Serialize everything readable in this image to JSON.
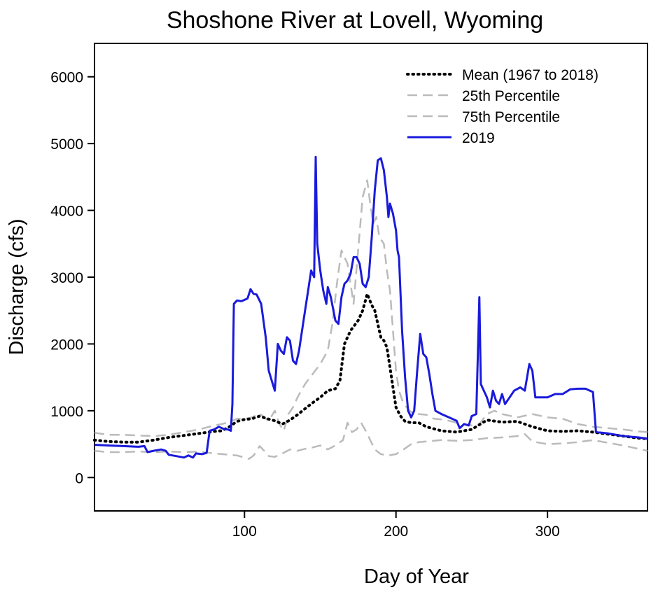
{
  "chart_data": {
    "type": "line",
    "title": "Shoshone River at Lovell, Wyoming",
    "xlabel": "Day of Year",
    "ylabel": "Discharge (cfs)",
    "xlim": [
      1,
      366
    ],
    "ylim": [
      -500,
      6500
    ],
    "xticks": [
      100,
      200,
      300
    ],
    "yticks": [
      0,
      1000,
      2000,
      3000,
      4000,
      5000,
      6000
    ],
    "grid": false,
    "legend_position": "top-right",
    "series": [
      {
        "name": "Mean (1967 to 2018)",
        "color": "#000000",
        "style": "dotted",
        "points": [
          [
            1,
            560
          ],
          [
            10,
            540
          ],
          [
            20,
            530
          ],
          [
            30,
            530
          ],
          [
            40,
            560
          ],
          [
            50,
            600
          ],
          [
            60,
            630
          ],
          [
            70,
            660
          ],
          [
            80,
            690
          ],
          [
            85,
            700
          ],
          [
            90,
            760
          ],
          [
            95,
            840
          ],
          [
            100,
            870
          ],
          [
            105,
            880
          ],
          [
            110,
            920
          ],
          [
            115,
            880
          ],
          [
            120,
            850
          ],
          [
            125,
            800
          ],
          [
            130,
            860
          ],
          [
            135,
            940
          ],
          [
            140,
            1030
          ],
          [
            145,
            1120
          ],
          [
            150,
            1200
          ],
          [
            155,
            1300
          ],
          [
            160,
            1330
          ],
          [
            163,
            1450
          ],
          [
            166,
            2000
          ],
          [
            170,
            2200
          ],
          [
            175,
            2350
          ],
          [
            178,
            2500
          ],
          [
            181,
            2750
          ],
          [
            184,
            2580
          ],
          [
            186,
            2500
          ],
          [
            188,
            2300
          ],
          [
            190,
            2100
          ],
          [
            192,
            2050
          ],
          [
            194,
            1950
          ],
          [
            196,
            1650
          ],
          [
            198,
            1350
          ],
          [
            200,
            1050
          ],
          [
            203,
            920
          ],
          [
            206,
            840
          ],
          [
            210,
            820
          ],
          [
            215,
            820
          ],
          [
            220,
            760
          ],
          [
            230,
            700
          ],
          [
            240,
            680
          ],
          [
            250,
            720
          ],
          [
            260,
            860
          ],
          [
            270,
            830
          ],
          [
            280,
            840
          ],
          [
            290,
            760
          ],
          [
            300,
            700
          ],
          [
            310,
            690
          ],
          [
            320,
            700
          ],
          [
            330,
            680
          ],
          [
            340,
            650
          ],
          [
            350,
            620
          ],
          [
            360,
            590
          ],
          [
            366,
            580
          ]
        ]
      },
      {
        "name": "25th Percentile",
        "color": "#bbbbbb",
        "style": "dashed",
        "points": [
          [
            1,
            400
          ],
          [
            10,
            380
          ],
          [
            20,
            380
          ],
          [
            30,
            390
          ],
          [
            40,
            380
          ],
          [
            50,
            390
          ],
          [
            60,
            380
          ],
          [
            70,
            390
          ],
          [
            80,
            360
          ],
          [
            90,
            340
          ],
          [
            95,
            330
          ],
          [
            100,
            300
          ],
          [
            103,
            280
          ],
          [
            106,
            330
          ],
          [
            110,
            470
          ],
          [
            113,
            400
          ],
          [
            116,
            320
          ],
          [
            120,
            310
          ],
          [
            125,
            360
          ],
          [
            130,
            420
          ],
          [
            135,
            400
          ],
          [
            140,
            430
          ],
          [
            145,
            450
          ],
          [
            150,
            480
          ],
          [
            155,
            420
          ],
          [
            160,
            480
          ],
          [
            165,
            560
          ],
          [
            168,
            820
          ],
          [
            171,
            680
          ],
          [
            174,
            720
          ],
          [
            177,
            820
          ],
          [
            180,
            700
          ],
          [
            183,
            560
          ],
          [
            186,
            420
          ],
          [
            190,
            350
          ],
          [
            195,
            330
          ],
          [
            200,
            350
          ],
          [
            205,
            420
          ],
          [
            210,
            500
          ],
          [
            215,
            530
          ],
          [
            220,
            540
          ],
          [
            230,
            560
          ],
          [
            240,
            550
          ],
          [
            250,
            560
          ],
          [
            260,
            590
          ],
          [
            270,
            600
          ],
          [
            280,
            620
          ],
          [
            285,
            650
          ],
          [
            290,
            540
          ],
          [
            300,
            500
          ],
          [
            310,
            510
          ],
          [
            320,
            530
          ],
          [
            330,
            560
          ],
          [
            340,
            520
          ],
          [
            350,
            480
          ],
          [
            360,
            430
          ],
          [
            366,
            400
          ]
        ]
      },
      {
        "name": "75th Percentile",
        "color": "#bbbbbb",
        "style": "dashed",
        "points": [
          [
            1,
            670
          ],
          [
            10,
            640
          ],
          [
            20,
            640
          ],
          [
            30,
            630
          ],
          [
            40,
            620
          ],
          [
            50,
            640
          ],
          [
            60,
            680
          ],
          [
            70,
            720
          ],
          [
            80,
            780
          ],
          [
            85,
            800
          ],
          [
            90,
            830
          ],
          [
            95,
            880
          ],
          [
            100,
            880
          ],
          [
            105,
            900
          ],
          [
            110,
            960
          ],
          [
            113,
            900
          ],
          [
            116,
            850
          ],
          [
            120,
            1000
          ],
          [
            123,
            800
          ],
          [
            126,
            700
          ],
          [
            129,
            950
          ],
          [
            132,
            1050
          ],
          [
            135,
            1200
          ],
          [
            140,
            1400
          ],
          [
            145,
            1550
          ],
          [
            150,
            1700
          ],
          [
            155,
            1900
          ],
          [
            158,
            2300
          ],
          [
            161,
            2900
          ],
          [
            164,
            3400
          ],
          [
            166,
            3300
          ],
          [
            168,
            3200
          ],
          [
            170,
            2900
          ],
          [
            172,
            2600
          ],
          [
            175,
            3400
          ],
          [
            178,
            4200
          ],
          [
            181,
            4450
          ],
          [
            183,
            4100
          ],
          [
            185,
            3800
          ],
          [
            187,
            3900
          ],
          [
            189,
            3600
          ],
          [
            192,
            3500
          ],
          [
            194,
            3100
          ],
          [
            196,
            2800
          ],
          [
            198,
            2200
          ],
          [
            200,
            1600
          ],
          [
            202,
            1300
          ],
          [
            205,
            1100
          ],
          [
            210,
            980
          ],
          [
            215,
            950
          ],
          [
            220,
            940
          ],
          [
            225,
            880
          ],
          [
            230,
            870
          ],
          [
            235,
            850
          ],
          [
            240,
            820
          ],
          [
            245,
            800
          ],
          [
            250,
            780
          ],
          [
            255,
            800
          ],
          [
            260,
            950
          ],
          [
            265,
            1000
          ],
          [
            270,
            950
          ],
          [
            280,
            900
          ],
          [
            290,
            950
          ],
          [
            300,
            900
          ],
          [
            310,
            880
          ],
          [
            320,
            800
          ],
          [
            330,
            760
          ],
          [
            340,
            740
          ],
          [
            350,
            720
          ],
          [
            360,
            690
          ],
          [
            366,
            680
          ]
        ]
      },
      {
        "name": "2019",
        "color": "#1a1adc",
        "style": "solid",
        "points": [
          [
            1,
            490
          ],
          [
            10,
            480
          ],
          [
            20,
            470
          ],
          [
            30,
            460
          ],
          [
            34,
            470
          ],
          [
            36,
            380
          ],
          [
            40,
            400
          ],
          [
            45,
            420
          ],
          [
            48,
            400
          ],
          [
            50,
            340
          ],
          [
            55,
            320
          ],
          [
            60,
            300
          ],
          [
            63,
            330
          ],
          [
            66,
            300
          ],
          [
            68,
            360
          ],
          [
            72,
            350
          ],
          [
            75,
            370
          ],
          [
            77,
            700
          ],
          [
            80,
            720
          ],
          [
            83,
            760
          ],
          [
            86,
            730
          ],
          [
            89,
            720
          ],
          [
            91,
            700
          ],
          [
            92,
            1100
          ],
          [
            93,
            2600
          ],
          [
            95,
            2650
          ],
          [
            98,
            2640
          ],
          [
            102,
            2680
          ],
          [
            104,
            2820
          ],
          [
            106,
            2750
          ],
          [
            108,
            2740
          ],
          [
            111,
            2600
          ],
          [
            114,
            2100
          ],
          [
            116,
            1600
          ],
          [
            118,
            1450
          ],
          [
            120,
            1300
          ],
          [
            122,
            2000
          ],
          [
            124,
            1900
          ],
          [
            126,
            1850
          ],
          [
            128,
            2100
          ],
          [
            130,
            2050
          ],
          [
            132,
            1750
          ],
          [
            134,
            1700
          ],
          [
            136,
            1900
          ],
          [
            138,
            2200
          ],
          [
            140,
            2500
          ],
          [
            142,
            2800
          ],
          [
            144,
            3100
          ],
          [
            146,
            3000
          ],
          [
            147,
            4800
          ],
          [
            148,
            3500
          ],
          [
            150,
            3100
          ],
          [
            152,
            2800
          ],
          [
            154,
            2600
          ],
          [
            155,
            2850
          ],
          [
            157,
            2700
          ],
          [
            160,
            2350
          ],
          [
            162,
            2300
          ],
          [
            164,
            2700
          ],
          [
            166,
            2900
          ],
          [
            168,
            2950
          ],
          [
            170,
            3050
          ],
          [
            172,
            3300
          ],
          [
            174,
            3300
          ],
          [
            176,
            3200
          ],
          [
            178,
            2900
          ],
          [
            180,
            2850
          ],
          [
            182,
            3000
          ],
          [
            184,
            3600
          ],
          [
            186,
            4300
          ],
          [
            188,
            4750
          ],
          [
            190,
            4780
          ],
          [
            192,
            4600
          ],
          [
            194,
            4200
          ],
          [
            195,
            3900
          ],
          [
            196,
            4100
          ],
          [
            198,
            3950
          ],
          [
            200,
            3700
          ],
          [
            201,
            3400
          ],
          [
            202,
            3300
          ],
          [
            204,
            2200
          ],
          [
            206,
            1500
          ],
          [
            208,
            1000
          ],
          [
            210,
            900
          ],
          [
            212,
            1000
          ],
          [
            214,
            1600
          ],
          [
            216,
            2150
          ],
          [
            218,
            1850
          ],
          [
            220,
            1800
          ],
          [
            222,
            1550
          ],
          [
            224,
            1250
          ],
          [
            226,
            1000
          ],
          [
            230,
            950
          ],
          [
            235,
            900
          ],
          [
            240,
            850
          ],
          [
            242,
            740
          ],
          [
            245,
            800
          ],
          [
            248,
            780
          ],
          [
            250,
            920
          ],
          [
            253,
            950
          ],
          [
            255,
            2700
          ],
          [
            256,
            1400
          ],
          [
            258,
            1300
          ],
          [
            260,
            1200
          ],
          [
            262,
            1050
          ],
          [
            264,
            1300
          ],
          [
            266,
            1150
          ],
          [
            268,
            1100
          ],
          [
            270,
            1250
          ],
          [
            272,
            1100
          ],
          [
            275,
            1200
          ],
          [
            278,
            1300
          ],
          [
            282,
            1350
          ],
          [
            285,
            1300
          ],
          [
            288,
            1700
          ],
          [
            290,
            1600
          ],
          [
            292,
            1200
          ],
          [
            296,
            1200
          ],
          [
            300,
            1200
          ],
          [
            305,
            1250
          ],
          [
            310,
            1250
          ],
          [
            315,
            1320
          ],
          [
            320,
            1330
          ],
          [
            325,
            1330
          ],
          [
            330,
            1280
          ],
          [
            332,
            680
          ],
          [
            340,
            660
          ],
          [
            350,
            620
          ],
          [
            360,
            600
          ],
          [
            366,
            580
          ]
        ]
      }
    ]
  }
}
